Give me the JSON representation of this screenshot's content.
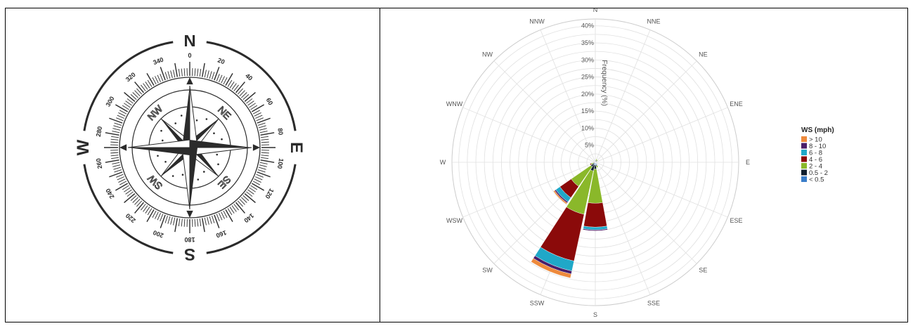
{
  "compass": {
    "cardinals": [
      "N",
      "E",
      "S",
      "W"
    ],
    "intercardinals": [
      "NE",
      "SE",
      "SW",
      "NW"
    ],
    "degree_labels": [
      "0",
      "20",
      "40",
      "60",
      "80",
      "100",
      "120",
      "140",
      "160",
      "180",
      "200",
      "220",
      "240",
      "260",
      "280",
      "300",
      "320",
      "340"
    ],
    "ink_color": "#2b2b2b"
  },
  "chart_data": {
    "type": "windrose",
    "directions": [
      "N",
      "NNE",
      "NE",
      "ENE",
      "E",
      "ESE",
      "SE",
      "SSE",
      "S",
      "SSW",
      "SW",
      "WSW",
      "W",
      "WNW",
      "NW",
      "NNW"
    ],
    "radial_axis": {
      "label": "Frequency (%)",
      "ticks": [
        "5%",
        "10%",
        "15%",
        "20%",
        "25%",
        "30%",
        "35%",
        "40%"
      ],
      "max": 42,
      "step": 2.5
    },
    "legend": {
      "title": "WS (mph)",
      "position": "right"
    },
    "series": [
      {
        "name": "< 0.5",
        "color": "#3a7dc9",
        "values": [
          0,
          0.2,
          0.2,
          0.1,
          0,
          0,
          0,
          0.8,
          0.8,
          0.8,
          0.4,
          0.2,
          0.1,
          0,
          0,
          0
        ]
      },
      {
        "name": "0.5 - 2",
        "color": "#0f1e2e",
        "values": [
          0.4,
          0.5,
          0.4,
          0.2,
          0.1,
          0.1,
          0.1,
          0.3,
          1.2,
          1.8,
          1.2,
          0.5,
          0.3,
          0.1,
          0.1,
          0.2
        ]
      },
      {
        "name": "2 - 4",
        "color": "#8ab82a",
        "values": [
          0.2,
          0.3,
          0.3,
          0.1,
          0,
          0,
          0,
          0.5,
          10,
          13,
          7,
          0.6,
          0.2,
          0,
          0,
          0
        ]
      },
      {
        "name": "4 - 6",
        "color": "#8b0a0a",
        "values": [
          0,
          0,
          0,
          0,
          0,
          0,
          0,
          0,
          7,
          14,
          4,
          0.3,
          0,
          0,
          0,
          0
        ]
      },
      {
        "name": "6 - 8",
        "color": "#1fa8c8",
        "values": [
          0,
          0,
          0,
          0,
          0,
          0,
          0,
          0,
          0.8,
          3,
          1.5,
          0,
          0,
          0,
          0,
          0
        ]
      },
      {
        "name": "8 - 10",
        "color": "#4a1e6a",
        "values": [
          0,
          0,
          0,
          0,
          0,
          0,
          0,
          0,
          0.3,
          0.9,
          0.4,
          0,
          0,
          0,
          0,
          0
        ]
      },
      {
        "name": "> 10",
        "color": "#ee8a3c",
        "values": [
          0,
          0,
          0,
          0,
          0,
          0,
          0,
          0,
          0,
          1.2,
          0.4,
          0,
          0,
          0,
          0,
          0
        ]
      }
    ]
  }
}
